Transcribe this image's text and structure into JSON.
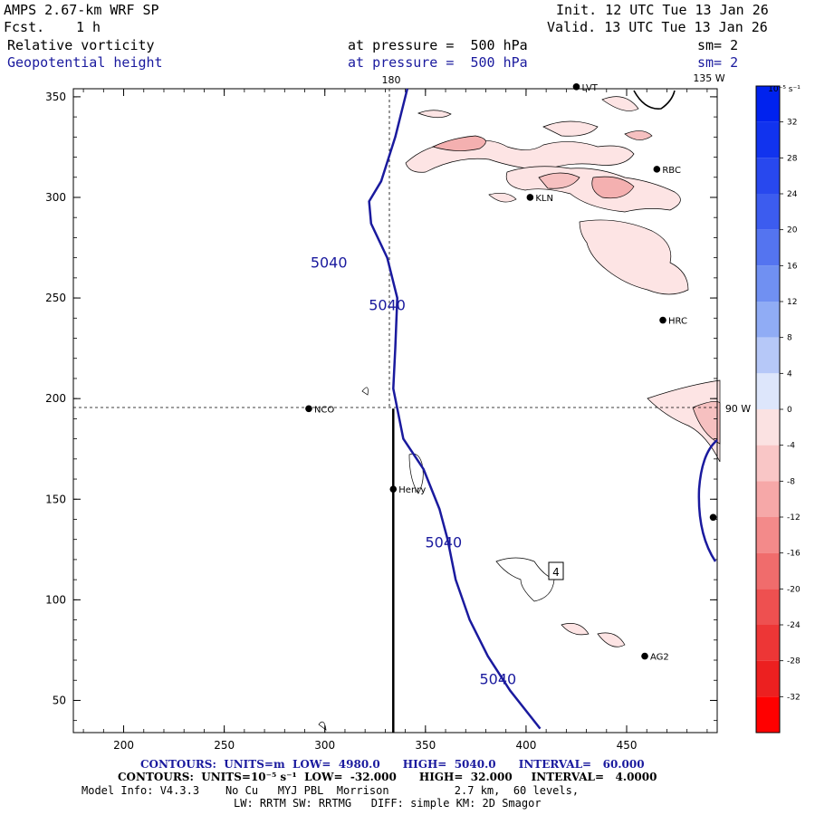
{
  "header": {
    "model": "AMPS 2.67-km WRF SP",
    "fcst_label": "Fcst.",
    "fcst_value": "1 h",
    "init": "Init. 12 UTC Tue 13 Jan 26",
    "valid": "Valid. 13 UTC Tue 13 Jan 26",
    "field1": "Relative vorticity",
    "field2": "Geopotential height",
    "level1": "at pressure =  500 hPa",
    "level2": "at pressure =  500 hPa",
    "sm1": "sm= 2",
    "sm2": "sm= 2"
  },
  "map_labels": {
    "lon_180": "180",
    "lon_135w": "135 W",
    "lon_90w": "90 W",
    "sector_box": "4"
  },
  "stations": [
    {
      "name": "LVT",
      "x": 425,
      "y": 355
    },
    {
      "name": "RBC",
      "x": 465,
      "y": 314
    },
    {
      "name": "KLN",
      "x": 402,
      "y": 300
    },
    {
      "name": "HRC",
      "x": 468,
      "y": 239
    },
    {
      "name": "NCO",
      "x": 292,
      "y": 195
    },
    {
      "name": "Henry",
      "x": 334,
      "y": 155
    },
    {
      "name": "AG2",
      "x": 459,
      "y": 72
    },
    {
      "name": "",
      "x": 493,
      "y": 141
    }
  ],
  "colorbar": {
    "unit_label": "10⁻⁵ s⁻¹",
    "labels": [
      "32",
      "28",
      "24",
      "20",
      "16",
      "12",
      "8",
      "4",
      "0",
      "-4",
      "-8",
      "-12",
      "-16",
      "-20",
      "-24",
      "-28",
      "-32"
    ]
  },
  "footer": {
    "contours1": "CONTOURS:  UNITS=m  LOW=  4980.0      HIGH=  5040.0      INTERVAL=   60.000",
    "contours2": "CONTOURS:  UNITS=10⁻⁵ s⁻¹  LOW=  -32.000      HIGH=  32.000     INTERVAL=   4.0000",
    "model_info": "Model Info: V4.3.3    No Cu   MYJ PBL  Morrison          2.7 km,  60 levels,",
    "model_info2": "LW: RRTM SW: RRTMG   DIFF: simple KM: 2D Smagor"
  },
  "chart_data": {
    "type": "contour",
    "title": "Relative vorticity / Geopotential height at 500 hPa",
    "xlim": [
      175,
      495
    ],
    "ylim": [
      34,
      354
    ],
    "xticks": [
      200,
      250,
      300,
      350,
      400,
      450
    ],
    "yticks": [
      50,
      100,
      150,
      200,
      250,
      300,
      350
    ],
    "height_contour": {
      "level": 5040,
      "label": "5040",
      "points": [
        [
          341,
          354
        ],
        [
          335,
          330
        ],
        [
          328,
          308
        ],
        [
          322,
          298
        ],
        [
          323,
          287
        ],
        [
          331,
          270
        ],
        [
          336,
          250
        ],
        [
          335,
          225
        ],
        [
          334,
          205
        ],
        [
          339,
          180
        ],
        [
          349,
          165
        ],
        [
          357,
          145
        ],
        [
          361,
          130
        ],
        [
          365,
          110
        ],
        [
          372,
          90
        ],
        [
          381,
          72
        ],
        [
          392,
          55
        ],
        [
          407,
          36
        ]
      ],
      "labels_at": [
        [
          302,
          265
        ],
        [
          331,
          244
        ],
        [
          359,
          126
        ],
        [
          386,
          58
        ]
      ]
    },
    "cross_section_line": {
      "x": 334,
      "y_from": 34,
      "y_to": 195
    }
  }
}
